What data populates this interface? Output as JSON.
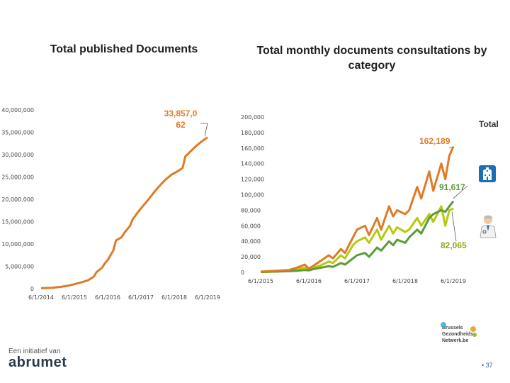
{
  "titles": {
    "left": "Total published Documents",
    "right": "Total monthly documents consultations by category"
  },
  "chart_data": [
    {
      "type": "line",
      "title": "Total published Documents",
      "x": [
        "6/1/2014",
        "10/1/2014",
        "1/1/2015",
        "4/1/2015",
        "6/1/2015",
        "9/1/2015",
        "11/1/2015",
        "1/1/2016",
        "2/1/2016",
        "4/1/2016",
        "5/1/2016",
        "6/1/2016",
        "8/1/2016",
        "9/1/2016",
        "11/1/2016",
        "12/1/2016",
        "2/1/2017",
        "3/1/2017",
        "5/1/2017",
        "7/1/2017",
        "9/1/2017",
        "11/1/2017",
        "1/1/2018",
        "3/1/2018",
        "5/1/2018",
        "7/1/2018",
        "9/1/2018",
        "10/1/2018",
        "12/1/2018",
        "2/1/2019",
        "4/1/2019",
        "6/1/2019"
      ],
      "series": [
        {
          "values": [
            100000,
            200000,
            400000,
            700000,
            1000000,
            1500000,
            1900000,
            2700000,
            3700000,
            4700000,
            5700000,
            6400000,
            8500000,
            10800000,
            11500000,
            12500000,
            14000000,
            15500000,
            17200000,
            18700000,
            20200000,
            21800000,
            23200000,
            24500000,
            25500000,
            26200000,
            27000000,
            29600000,
            30800000,
            32000000,
            33000000,
            33857062
          ]
        }
      ],
      "yticks": [
        "0",
        "5,000,000",
        "10,000,000",
        "15,000,000",
        "20,000,000",
        "25,000,000",
        "30,000,000",
        "35,000,000",
        "40,000,000"
      ],
      "xticks": [
        "6/1/2014",
        "6/1/2015",
        "6/1/2016",
        "6/1/2017",
        "6/1/2018",
        "6/1/2019"
      ],
      "ylim": [
        0,
        40000000
      ],
      "annotations": [
        {
          "text": "33,857,062",
          "color": "#e07b25"
        }
      ],
      "colors": {
        "line": "#e07b25"
      }
    },
    {
      "type": "line",
      "title": "Total monthly documents consultations by category",
      "x": [
        "6/1/2015",
        "10/1/2015",
        "1/1/2016",
        "3/1/2016",
        "5/1/2016",
        "6/1/2016",
        "7/1/2016",
        "9/1/2016",
        "11/1/2016",
        "12/1/2016",
        "2/1/2017",
        "3/1/2017",
        "5/1/2017",
        "6/1/2017",
        "8/1/2017",
        "9/1/2017",
        "11/1/2017",
        "12/1/2017",
        "2/1/2018",
        "3/1/2018",
        "4/1/2018",
        "6/1/2018",
        "7/1/2018",
        "9/1/2018",
        "10/1/2018",
        "12/1/2018",
        "1/1/2019",
        "3/1/2019",
        "4/1/2019",
        "5/1/2019",
        "6/1/2019"
      ],
      "series": [
        {
          "name": "Total",
          "color": "#e07b25",
          "values": [
            1000,
            2000,
            3000,
            6000,
            10000,
            5000,
            8000,
            15000,
            22000,
            18000,
            30000,
            25000,
            45000,
            55000,
            60000,
            48000,
            70000,
            55000,
            85000,
            72000,
            80000,
            75000,
            80000,
            110000,
            95000,
            130000,
            105000,
            140000,
            120000,
            150000,
            162189
          ]
        },
        {
          "color": "#5b9b3a",
          "values": [
            500,
            1000,
            1500,
            2000,
            3000,
            2500,
            4000,
            6000,
            8000,
            7000,
            12000,
            10000,
            18000,
            22000,
            25000,
            20000,
            32000,
            28000,
            40000,
            35000,
            42000,
            38000,
            45000,
            55000,
            50000,
            70000,
            75000,
            80000,
            78000,
            85000,
            91617
          ]
        },
        {
          "color": "#b7c80f",
          "values": [
            500,
            1000,
            2000,
            4000,
            6000,
            4000,
            6000,
            9000,
            14000,
            12000,
            22000,
            18000,
            35000,
            40000,
            45000,
            38000,
            55000,
            42000,
            60000,
            50000,
            58000,
            52000,
            55000,
            70000,
            60000,
            75000,
            65000,
            85000,
            60000,
            80000,
            82065
          ]
        }
      ],
      "yticks": [
        "0",
        "20,000",
        "40,000",
        "60,000",
        "80,000",
        "100,000",
        "120,000",
        "140,000",
        "160,000",
        "180,000",
        "200,000"
      ],
      "xticks": [
        "6/1/2015",
        "6/1/2016",
        "6/1/2017",
        "6/1/2018",
        "6/1/2019"
      ],
      "ylim": [
        0,
        200000
      ],
      "annotations": [
        {
          "text": "162,189",
          "color": "#e07b25"
        },
        {
          "text": "91,617",
          "color": "#5b9b3a"
        },
        {
          "text": "82,065",
          "color": "#9aa810"
        }
      ],
      "legend": [
        "Total"
      ]
    }
  ],
  "footer": {
    "tagline": "Een initiatief van",
    "logo": "abrumet",
    "partner": [
      "Brussels",
      "Gezondheids",
      "Netwerk.be"
    ],
    "page_number": "37"
  },
  "icons": [
    "hospital-icon",
    "doctor-icon"
  ]
}
